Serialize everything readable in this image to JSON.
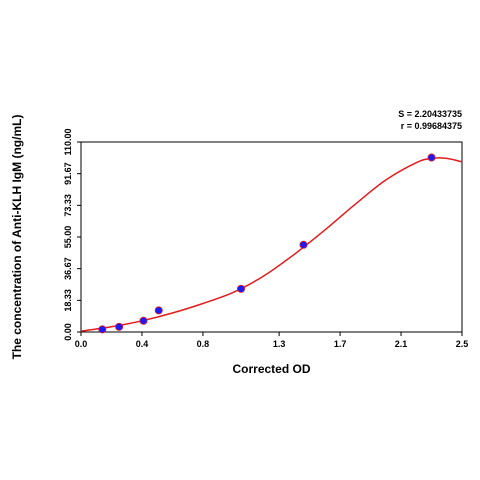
{
  "chart_data": {
    "type": "scatter",
    "xlabel": "Corrected OD",
    "ylabel": "The concentration of Anti-KLH IgM (ng/mL)",
    "xlim": [
      0.0,
      2.5
    ],
    "ylim": [
      0.0,
      110.0
    ],
    "x_ticks": [
      "0.0",
      "0.4",
      "0.8",
      "1.3",
      "1.7",
      "2.1",
      "2.5"
    ],
    "y_ticks": [
      "0.00",
      "18.33",
      "36.67",
      "55.00",
      "73.33",
      "91.67",
      "110.00"
    ],
    "points": [
      {
        "x": 0.14,
        "y": 1.5
      },
      {
        "x": 0.25,
        "y": 3.0
      },
      {
        "x": 0.41,
        "y": 6.5
      },
      {
        "x": 0.51,
        "y": 12.5
      },
      {
        "x": 1.05,
        "y": 25.0
      },
      {
        "x": 1.46,
        "y": 50.5
      },
      {
        "x": 2.3,
        "y": 101.0
      }
    ],
    "fit_curve": {
      "x": [
        0.0,
        0.2,
        0.4,
        0.6,
        0.8,
        1.0,
        1.2,
        1.4,
        1.6,
        1.8,
        2.0,
        2.2,
        2.3,
        2.4,
        2.5
      ],
      "y": [
        0.5,
        3.0,
        6.5,
        11.0,
        16.5,
        23.0,
        32.5,
        45.0,
        59.0,
        74.0,
        88.0,
        98.0,
        100.5,
        100.5,
        98.5
      ]
    },
    "stats": {
      "s": "S = 2.20433735",
      "r": "r = 0.99684375"
    },
    "grid": false,
    "colors": {
      "curve": "#e41a1c",
      "point_fill": "#1a1aff",
      "axis": "#000000"
    }
  }
}
